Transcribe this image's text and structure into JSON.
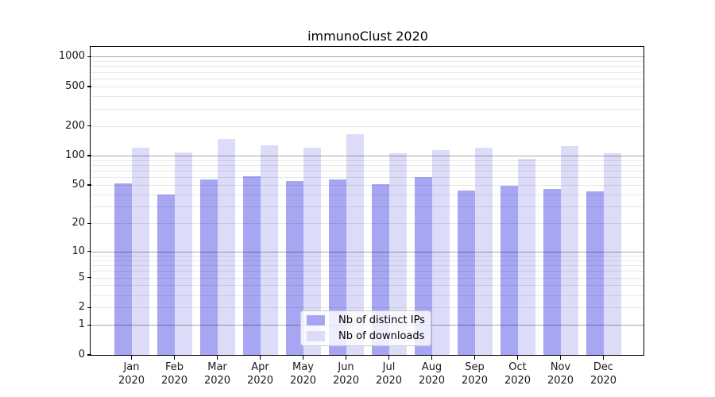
{
  "chart_data": {
    "type": "bar",
    "title": "immunoClust 2020",
    "categories": [
      "Jan 2020",
      "Feb 2020",
      "Mar 2020",
      "Apr 2020",
      "May 2020",
      "Jun 2020",
      "Jul 2020",
      "Aug 2020",
      "Sep 2020",
      "Oct 2020",
      "Nov 2020",
      "Dec 2020"
    ],
    "series": [
      {
        "name": "Nb of distinct IPs",
        "color": "#a6a6f3",
        "values": [
          52,
          40,
          57,
          62,
          55,
          57,
          51,
          61,
          44,
          49,
          46,
          43
        ]
      },
      {
        "name": "Nb of downloads",
        "color": "#dcdcf9",
        "values": [
          120,
          107,
          148,
          127,
          120,
          165,
          106,
          113,
          120,
          92,
          124,
          105
        ]
      }
    ],
    "xlabel": "",
    "ylabel": "",
    "y_ticks": [
      0,
      1,
      2,
      5,
      10,
      20,
      50,
      100,
      200,
      500,
      1000
    ],
    "y_scale": "log1p",
    "ylim": [
      0,
      1245
    ],
    "grid": true,
    "legend_position": "inside-bottom-center"
  },
  "colors": {
    "background": "#ffffff",
    "axis": "#000000",
    "text": "#1a1a1a",
    "bar_distinct_ips": "#a6a6f3",
    "bar_downloads": "#dcdcf9"
  }
}
